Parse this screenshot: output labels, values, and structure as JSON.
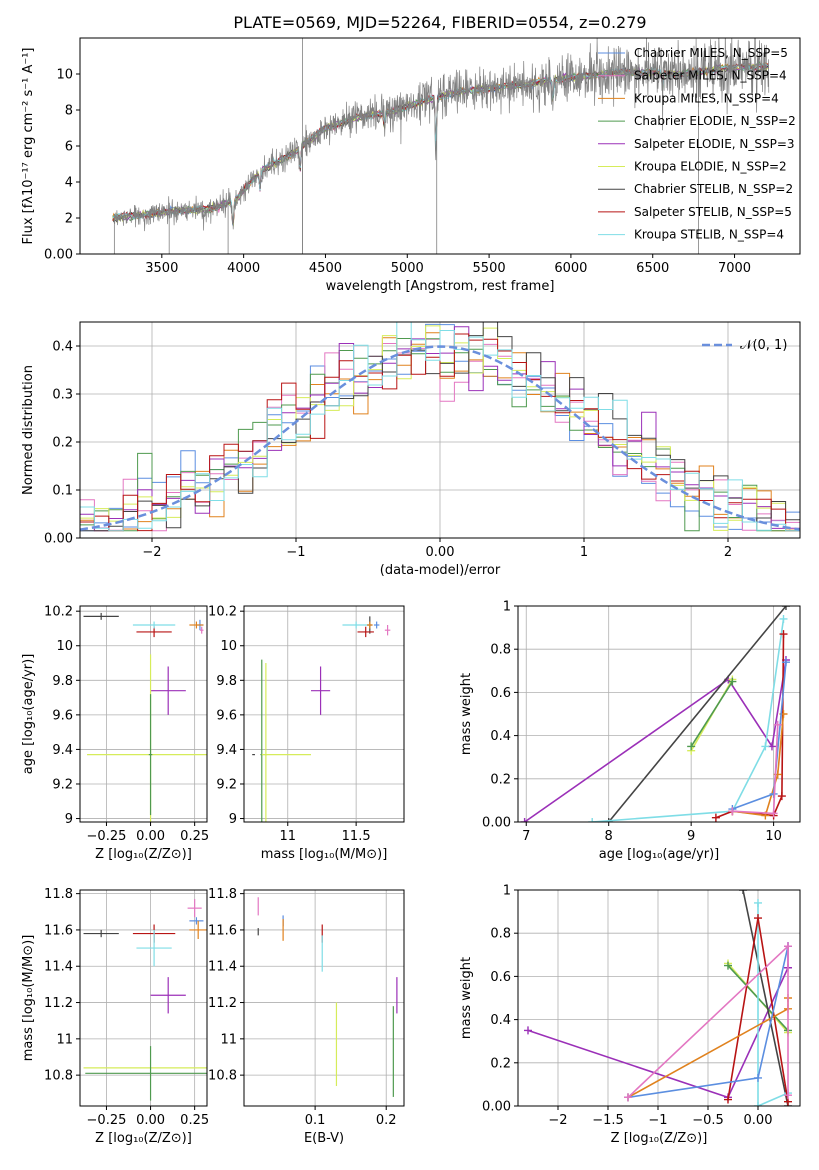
{
  "figure": {
    "title": "PLATE=0569, MJD=52264, FIBERID=0554, z=0.279"
  },
  "colors": {
    "chabrier_miles": "#5b8ee0",
    "salpeter_miles": "#e377c2",
    "kroupa_miles": "#e0821e",
    "chabrier_elodie": "#4f9a4f",
    "salpeter_elodie": "#9b30b8",
    "kroupa_elodie": "#d6ec5a",
    "chabrier_stelib": "#444444",
    "salpeter_stelib": "#b81414",
    "kroupa_stelib": "#7fdde6",
    "grid": "#b0b0b0",
    "spectrum_grey": "#808080",
    "normal_curve": "#6a8fdc"
  },
  "chart_data": [
    {
      "id": "spectrum",
      "type": "line",
      "xlabel": "wavelength [Angstrom, rest frame]",
      "ylabel": "Flux [fλ10⁻¹⁷ erg cm⁻² s⁻¹ A⁻¹]",
      "xlim": [
        3000,
        7400
      ],
      "ylim": [
        0,
        12
      ],
      "xticks": [
        3500,
        4000,
        4500,
        5000,
        5500,
        6000,
        6500,
        7000
      ],
      "yticks": [
        0,
        2,
        4,
        6,
        8,
        10
      ],
      "grid": false,
      "legend_position": "upper-right",
      "continuum": {
        "x": [
          3200,
          3400,
          3600,
          3800,
          3950,
          4100,
          4300,
          4500,
          4700,
          4900,
          5100,
          5300,
          5500,
          5700,
          5900,
          6100,
          6300,
          6500,
          6700,
          6900,
          7100,
          7200
        ],
        "y": [
          2.0,
          2.2,
          2.4,
          2.5,
          3.0,
          4.6,
          5.6,
          7.0,
          7.6,
          7.9,
          8.5,
          9.0,
          9.2,
          9.4,
          9.7,
          9.9,
          10.1,
          10.1,
          10.0,
          10.3,
          10.4,
          10.4
        ]
      },
      "absorption_features": [
        {
          "x": 3935,
          "depth": 1.5
        },
        {
          "x": 4100,
          "depth": 1.0
        },
        {
          "x": 4345,
          "depth": 1.2
        },
        {
          "x": 4860,
          "depth": 0.8
        },
        {
          "x": 5175,
          "depth": 2.8
        },
        {
          "x": 5890,
          "depth": 1.2
        },
        {
          "x": 6560,
          "depth": 0.8
        }
      ],
      "legend": [
        {
          "label": "Chabrier MILES, N_SSP=5",
          "color_key": "chabrier_miles"
        },
        {
          "label": "Salpeter MILES, N_SSP=4",
          "color_key": "salpeter_miles"
        },
        {
          "label": "Kroupa MILES, N_SSP=4",
          "color_key": "kroupa_miles"
        },
        {
          "label": "Chabrier ELODIE, N_SSP=2",
          "color_key": "chabrier_elodie"
        },
        {
          "label": "Salpeter ELODIE, N_SSP=3",
          "color_key": "salpeter_elodie"
        },
        {
          "label": "Kroupa ELODIE, N_SSP=2",
          "color_key": "kroupa_elodie"
        },
        {
          "label": "Chabrier STELIB, N_SSP=2",
          "color_key": "chabrier_stelib"
        },
        {
          "label": "Salpeter STELIB, N_SSP=5",
          "color_key": "salpeter_stelib"
        },
        {
          "label": "Kroupa STELIB, N_SSP=4",
          "color_key": "kroupa_stelib"
        }
      ]
    },
    {
      "id": "residuals",
      "type": "histogram",
      "xlabel": "(data-model)/error",
      "ylabel": "Normed distribution",
      "xlim": [
        -2.5,
        2.5
      ],
      "ylim": [
        0,
        0.45
      ],
      "xticks": [
        -2,
        -1,
        0,
        1,
        2
      ],
      "yticks": [
        0.0,
        0.1,
        0.2,
        0.3,
        0.4
      ],
      "grid": true,
      "bin_width": 0.1,
      "legend": [
        {
          "label": "𝒩(0, 1)",
          "style": "dashed"
        }
      ],
      "legend_position": "upper-right"
    },
    {
      "id": "age_vs_Z",
      "type": "errorbar",
      "xlabel": "Z [log₁₀(Z/Z⊙)]",
      "ylabel": "age [log₁₀(age/yr)]",
      "xlim": [
        -0.4,
        0.32
      ],
      "ylim": [
        8.98,
        10.23
      ],
      "xticks": [
        -0.25,
        0.0,
        0.25
      ],
      "yticks": [
        9.0,
        9.2,
        9.4,
        9.6,
        9.8,
        10.0,
        10.2
      ],
      "grid": true,
      "points": [
        {
          "key": "chabrier_stelib",
          "x": -0.28,
          "y": 10.17,
          "xerr": 0.1,
          "yerr": 0.02
        },
        {
          "key": "salpeter_stelib",
          "x": 0.02,
          "y": 10.08,
          "xerr": 0.1,
          "yerr": 0.03
        },
        {
          "key": "kroupa_stelib",
          "x": 0.02,
          "y": 10.12,
          "xerr": 0.12,
          "yerr": 0.02
        },
        {
          "key": "chabrier_miles",
          "x": 0.28,
          "y": 10.12,
          "xerr": 0.02,
          "yerr": 0.03
        },
        {
          "key": "salpeter_miles",
          "x": 0.29,
          "y": 10.09,
          "xerr": 0.01,
          "yerr": 0.02
        },
        {
          "key": "kroupa_miles",
          "x": 0.26,
          "y": 10.12,
          "xerr": 0.04,
          "yerr": 0.02
        },
        {
          "key": "salpeter_elodie",
          "x": 0.1,
          "y": 9.74,
          "xerr": 0.1,
          "yerr": 0.14
        },
        {
          "key": "kroupa_elodie",
          "x": 0.0,
          "y": 9.37,
          "xerr": 0.36,
          "yerr": 0.58
        },
        {
          "key": "chabrier_elodie",
          "x": 0.0,
          "y": 9.37,
          "xerr": 0.01,
          "yerr": 0.35
        }
      ]
    },
    {
      "id": "age_vs_mass",
      "type": "errorbar",
      "xlabel": "mass [log₁₀(M/M⊙)]",
      "ylabel": "",
      "xlim": [
        10.68,
        11.85
      ],
      "ylim": [
        8.98,
        10.23
      ],
      "xticks": [
        11.0,
        11.5
      ],
      "yticks": [
        9.0,
        9.2,
        9.4,
        9.6,
        9.8,
        10.0,
        10.2
      ],
      "grid": true,
      "points": [
        {
          "key": "chabrier_stelib",
          "x": 11.6,
          "y": 10.12,
          "xerr": 0.02,
          "yerr": 0.05
        },
        {
          "key": "salpeter_stelib",
          "x": 11.57,
          "y": 10.08,
          "xerr": 0.06,
          "yerr": 0.03
        },
        {
          "key": "kroupa_stelib",
          "x": 11.5,
          "y": 10.12,
          "xerr": 0.1,
          "yerr": 0.02
        },
        {
          "key": "chabrier_miles",
          "x": 11.65,
          "y": 10.12,
          "xerr": 0.02,
          "yerr": 0.02
        },
        {
          "key": "salpeter_miles",
          "x": 11.73,
          "y": 10.09,
          "xerr": 0.02,
          "yerr": 0.03
        },
        {
          "key": "kroupa_miles",
          "x": 11.6,
          "y": 10.12,
          "xerr": 0.02,
          "yerr": 0.02
        },
        {
          "key": "salpeter_elodie",
          "x": 11.24,
          "y": 9.74,
          "xerr": 0.07,
          "yerr": 0.14
        },
        {
          "key": "kroupa_elodie",
          "x": 10.84,
          "y": 9.37,
          "xerr": 0.01,
          "yerr": 0.53
        },
        {
          "key": "chabrier_elodie",
          "x": 10.81,
          "y": 9.37,
          "xerr": 0.01,
          "yerr": 0.55
        },
        {
          "key": "kroupa_elodie",
          "x": 10.99,
          "y": 9.37,
          "xerr": 0.18,
          "yerr": 0.0
        },
        {
          "key": "chabrier_stelib",
          "x": 10.75,
          "y": 9.37,
          "xerr": 0.01,
          "yerr": 0.0
        }
      ]
    },
    {
      "id": "mass_weight_vs_age",
      "type": "line",
      "xlabel": "age [log₁₀(age/yr)]",
      "ylabel": "mass weight",
      "xlim": [
        6.9,
        10.32
      ],
      "ylim": [
        0,
        1
      ],
      "xticks": [
        7,
        8,
        9,
        10
      ],
      "yticks": [
        0.0,
        0.2,
        0.4,
        0.6,
        0.8,
        1.0
      ],
      "grid": true,
      "series": [
        {
          "key": "salpeter_elodie",
          "x": [
            6.98,
            9.45,
            9.98,
            10.15
          ],
          "y": [
            0.0,
            0.66,
            0.35,
            0.75
          ]
        },
        {
          "key": "kroupa_elodie",
          "x": [
            9.0,
            9.5
          ],
          "y": [
            0.33,
            0.66
          ]
        },
        {
          "key": "chabrier_elodie",
          "x": [
            9.0,
            9.5
          ],
          "y": [
            0.35,
            0.65
          ]
        },
        {
          "key": "chabrier_stelib",
          "x": [
            8.0,
            10.15
          ],
          "y": [
            0.0,
            1.0
          ]
        },
        {
          "key": "kroupa_stelib",
          "x": [
            7.8,
            9.5,
            9.9,
            10.12
          ],
          "y": [
            0.0,
            0.05,
            0.35,
            0.94
          ]
        },
        {
          "key": "salpeter_stelib",
          "x": [
            9.3,
            9.5,
            10.0,
            10.1,
            10.12
          ],
          "y": [
            0.02,
            0.05,
            0.03,
            0.12,
            0.87
          ]
        },
        {
          "key": "kroupa_miles",
          "x": [
            9.5,
            9.9,
            10.05,
            10.12
          ],
          "y": [
            0.05,
            0.03,
            0.22,
            0.5
          ]
        },
        {
          "key": "chabrier_miles",
          "x": [
            9.5,
            10.0,
            10.15
          ],
          "y": [
            0.06,
            0.13,
            0.74
          ]
        },
        {
          "key": "salpeter_miles",
          "x": [
            9.5,
            10.0,
            10.05
          ],
          "y": [
            0.05,
            0.04,
            0.45
          ]
        }
      ]
    },
    {
      "id": "mass_vs_Z",
      "type": "errorbar",
      "xlabel": "Z [log₁₀(Z/Z⊙)]",
      "ylabel": "mass [log₁₀(M/M⊙)]",
      "xlim": [
        -0.4,
        0.32
      ],
      "ylim": [
        10.63,
        11.82
      ],
      "xticks": [
        -0.25,
        0.0,
        0.25
      ],
      "yticks": [
        10.8,
        11.0,
        11.2,
        11.4,
        11.6,
        11.8
      ],
      "grid": true,
      "points": [
        {
          "key": "chabrier_stelib",
          "x": -0.28,
          "y": 11.58,
          "xerr": 0.1,
          "yerr": 0.02
        },
        {
          "key": "salpeter_stelib",
          "x": 0.02,
          "y": 11.58,
          "xerr": 0.12,
          "yerr": 0.05
        },
        {
          "key": "kroupa_stelib",
          "x": 0.02,
          "y": 11.5,
          "xerr": 0.1,
          "yerr": 0.1
        },
        {
          "key": "salpeter_elodie",
          "x": 0.1,
          "y": 11.24,
          "xerr": 0.1,
          "yerr": 0.1
        },
        {
          "key": "kroupa_elodie",
          "x": -0.02,
          "y": 10.84,
          "xerr": 0.36,
          "yerr": 0.0
        },
        {
          "key": "chabrier_elodie",
          "x": 0.0,
          "y": 10.81,
          "xerr": 0.37,
          "yerr": 0.15
        },
        {
          "key": "salpeter_miles",
          "x": 0.25,
          "y": 11.72,
          "xerr": 0.04,
          "yerr": 0.05
        },
        {
          "key": "chabrier_miles",
          "x": 0.26,
          "y": 11.65,
          "xerr": 0.04,
          "yerr": 0.02
        },
        {
          "key": "kroupa_miles",
          "x": 0.27,
          "y": 11.6,
          "xerr": 0.05,
          "yerr": 0.05
        }
      ]
    },
    {
      "id": "mass_vs_ebv",
      "type": "errorbar",
      "xlabel": "E(B-V)",
      "ylabel": "",
      "xlim": [
        0.0,
        0.225
      ],
      "ylim": [
        10.63,
        11.82
      ],
      "xticks": [
        0.1,
        0.2
      ],
      "yticks": [
        10.8,
        11.0,
        11.2,
        11.4,
        11.6,
        11.8
      ],
      "grid": true,
      "points": [
        {
          "key": "salpeter_miles",
          "x": 0.02,
          "y": 11.73,
          "xerr": 0.0,
          "yerr": 0.05
        },
        {
          "key": "chabrier_stelib",
          "x": 0.02,
          "y": 11.59,
          "xerr": 0.0,
          "yerr": 0.02
        },
        {
          "key": "chabrier_miles",
          "x": 0.055,
          "y": 11.65,
          "xerr": 0.0,
          "yerr": 0.03
        },
        {
          "key": "kroupa_miles",
          "x": 0.055,
          "y": 11.6,
          "xerr": 0.0,
          "yerr": 0.06
        },
        {
          "key": "salpeter_stelib",
          "x": 0.11,
          "y": 11.58,
          "xerr": 0.0,
          "yerr": 0.05
        },
        {
          "key": "kroupa_stelib",
          "x": 0.11,
          "y": 11.47,
          "xerr": 0.0,
          "yerr": 0.1
        },
        {
          "key": "kroupa_elodie",
          "x": 0.13,
          "y": 10.97,
          "xerr": 0.0,
          "yerr": 0.23
        },
        {
          "key": "salpeter_elodie",
          "x": 0.215,
          "y": 11.24,
          "xerr": 0.0,
          "yerr": 0.1
        },
        {
          "key": "chabrier_elodie",
          "x": 0.21,
          "y": 10.93,
          "xerr": 0.0,
          "yerr": 0.25
        }
      ]
    },
    {
      "id": "mass_weight_vs_Z",
      "type": "line",
      "xlabel": "Z [log₁₀(Z/Z⊙)]",
      "ylabel": "mass weight",
      "xlim": [
        -2.4,
        0.42
      ],
      "ylim": [
        0,
        1
      ],
      "xticks": [
        -2.0,
        -1.5,
        -1.0,
        -0.5,
        0.0
      ],
      "yticks": [
        0.0,
        0.2,
        0.4,
        0.6,
        0.8,
        1.0
      ],
      "grid": true,
      "series": [
        {
          "key": "salpeter_elodie",
          "x": [
            -2.3,
            -0.3,
            0.3,
            0.3
          ],
          "y": [
            0.35,
            0.04,
            0.64,
            0.74
          ]
        },
        {
          "key": "kroupa_elodie",
          "x": [
            -0.3,
            0.3
          ],
          "y": [
            0.66,
            0.34
          ]
        },
        {
          "key": "chabrier_elodie",
          "x": [
            -0.3,
            0.3
          ],
          "y": [
            0.65,
            0.35
          ]
        },
        {
          "key": "chabrier_stelib",
          "x": [
            -0.15,
            0.3
          ],
          "y": [
            1.0,
            0.0
          ]
        },
        {
          "key": "kroupa_stelib",
          "x": [
            0.0,
            0.0,
            0.3
          ],
          "y": [
            0.94,
            0.0,
            0.06
          ]
        },
        {
          "key": "salpeter_stelib",
          "x": [
            -0.3,
            0.0,
            0.3
          ],
          "y": [
            0.03,
            0.87,
            0.02
          ]
        },
        {
          "key": "kroupa_miles",
          "x": [
            -1.3,
            0.3,
            0.3
          ],
          "y": [
            0.04,
            0.45,
            0.5
          ]
        },
        {
          "key": "chabrier_miles",
          "x": [
            -1.3,
            0.0,
            0.3
          ],
          "y": [
            0.04,
            0.13,
            0.74
          ]
        },
        {
          "key": "salpeter_miles",
          "x": [
            -1.3,
            0.3,
            0.3
          ],
          "y": [
            0.04,
            0.74,
            0.05
          ]
        }
      ]
    }
  ]
}
